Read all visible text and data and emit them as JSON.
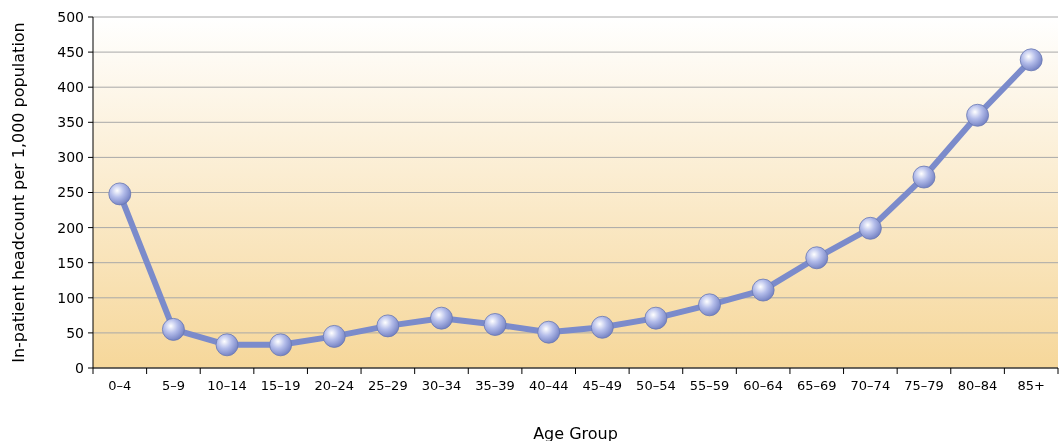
{
  "chart_data": {
    "type": "line",
    "xlabel": "Age Group",
    "ylabel": "In-patient headcount per 1,000 population",
    "categories": [
      "0–4",
      "5–9",
      "10–14",
      "15–19",
      "20–24",
      "25–29",
      "30–34",
      "35–39",
      "40–44",
      "45–49",
      "50–54",
      "55–59",
      "60–64",
      "65–69",
      "70–74",
      "75–79",
      "80–84",
      "85+"
    ],
    "series": [
      {
        "color": "#7b8bcb",
        "values": [
          248,
          55,
          33,
          33,
          45,
          60,
          71,
          62,
          51,
          58,
          71,
          90,
          111,
          157,
          199,
          272,
          360,
          439
        ]
      }
    ],
    "ylim": [
      0,
      500
    ],
    "yticks": [
      0,
      50,
      100,
      150,
      200,
      250,
      300,
      350,
      400,
      450,
      500
    ],
    "grid": "y",
    "marker": "circle",
    "line_style": "solid"
  }
}
